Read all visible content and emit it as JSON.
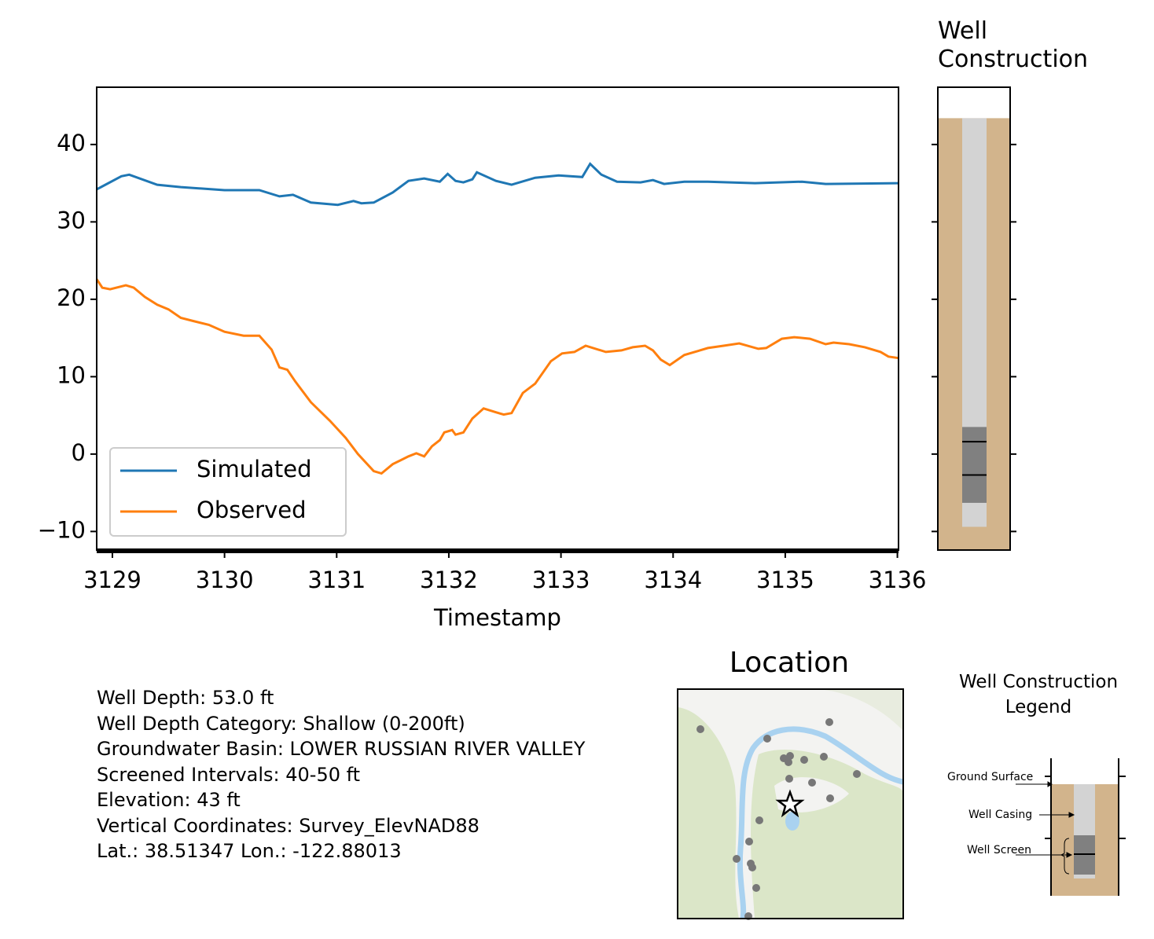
{
  "chart_data": [
    {
      "type": "line",
      "xlabel": "Timestamp",
      "xlim": [
        3128.86,
        3136.01
      ],
      "ylim": [
        -12.4,
        47.4
      ],
      "xticks": [
        3129,
        3130,
        3131,
        3132,
        3133,
        3134,
        3135,
        3136
      ],
      "yticks": [
        {
          "value": -10,
          "label": "−10"
        },
        0,
        10,
        20,
        30,
        40
      ],
      "legend": "lower left",
      "series": [
        {
          "name": "Simulated",
          "color": "#1f77b4",
          "x": [
            3128.86,
            3129.08,
            3129.15,
            3129.4,
            3129.61,
            3130.0,
            3130.31,
            3130.49,
            3130.61,
            3130.77,
            3131.01,
            3131.15,
            3131.22,
            3131.33,
            3131.5,
            3131.64,
            3131.78,
            3131.92,
            3131.99,
            3132.06,
            3132.13,
            3132.21,
            3132.25,
            3132.42,
            3132.56,
            3132.77,
            3132.98,
            3133.19,
            3133.26,
            3133.36,
            3133.5,
            3133.71,
            3133.82,
            3133.92,
            3134.1,
            3134.31,
            3134.73,
            3135.15,
            3135.36,
            3136.01
          ],
          "values": [
            34.2,
            35.9,
            36.1,
            34.8,
            34.5,
            34.1,
            34.1,
            33.3,
            33.5,
            32.5,
            32.2,
            32.7,
            32.4,
            32.5,
            33.8,
            35.3,
            35.6,
            35.2,
            36.2,
            35.3,
            35.1,
            35.5,
            36.4,
            35.3,
            34.8,
            35.7,
            36.0,
            35.8,
            37.5,
            36.1,
            35.2,
            35.1,
            35.4,
            34.9,
            35.2,
            35.2,
            35.0,
            35.2,
            34.9,
            35.0
          ]
        },
        {
          "name": "Observed",
          "color": "#ff7f0e",
          "x": [
            3128.86,
            3128.91,
            3128.98,
            3129.12,
            3129.19,
            3129.29,
            3129.4,
            3129.5,
            3129.61,
            3129.72,
            3129.86,
            3130.0,
            3130.17,
            3130.31,
            3130.42,
            3130.49,
            3130.56,
            3130.63,
            3130.77,
            3130.94,
            3131.08,
            3131.19,
            3131.33,
            3131.4,
            3131.5,
            3131.64,
            3131.71,
            3131.78,
            3131.85,
            3131.92,
            3131.96,
            3132.03,
            3132.06,
            3132.13,
            3132.21,
            3132.31,
            3132.42,
            3132.49,
            3132.56,
            3132.66,
            3132.77,
            3132.91,
            3133.01,
            3133.12,
            3133.22,
            3133.4,
            3133.54,
            3133.64,
            3133.75,
            3133.82,
            3133.89,
            3133.97,
            3134.1,
            3134.31,
            3134.45,
            3134.59,
            3134.76,
            3134.83,
            3134.97,
            3135.08,
            3135.22,
            3135.36,
            3135.43,
            3135.57,
            3135.71,
            3135.85,
            3135.92,
            3136.01
          ],
          "values": [
            22.6,
            21.5,
            21.3,
            21.8,
            21.5,
            20.3,
            19.3,
            18.7,
            17.6,
            17.2,
            16.7,
            15.8,
            15.3,
            15.3,
            13.5,
            11.2,
            10.9,
            9.4,
            6.7,
            4.3,
            2.1,
            0.0,
            -2.2,
            -2.5,
            -1.3,
            -0.3,
            0.1,
            -0.3,
            1.0,
            1.8,
            2.8,
            3.1,
            2.5,
            2.8,
            4.6,
            5.9,
            5.4,
            5.1,
            5.3,
            7.9,
            9.1,
            12.0,
            13.0,
            13.2,
            14.0,
            13.2,
            13.4,
            13.8,
            14.0,
            13.4,
            12.2,
            11.5,
            12.8,
            13.7,
            14.0,
            14.3,
            13.6,
            13.7,
            14.9,
            15.1,
            14.9,
            14.2,
            14.4,
            14.2,
            13.8,
            13.2,
            12.6,
            12.4
          ]
        }
      ]
    },
    {
      "type": "well",
      "title": "Well Construction",
      "ylim": [
        -12.4,
        47.4
      ],
      "yticks": [
        -10,
        0,
        10,
        20,
        30,
        40
      ],
      "ground": 43.4,
      "casing_bottom": -9.4,
      "screen": [
        3.5,
        -6.3
      ],
      "screen_lines": [
        1.6,
        -2.7
      ],
      "colors": {
        "soil": "#d2b48c",
        "casing": "#d3d3d3",
        "screen": "#808080"
      }
    }
  ],
  "info": [
    "Well Depth: 53.0 ft",
    "Well Depth Category: Shallow (0-200ft)",
    "Groundwater Basin: LOWER RUSSIAN RIVER VALLEY",
    "Screened Intervals: 40-50 ft",
    "Elevation: 43 ft",
    "Vertical Coordinates: Survey_ElevNAD88",
    "Lat.: 38.51347 Lon.: -122.88013"
  ],
  "location": {
    "title": "Location"
  },
  "well_legend": {
    "title": "Well Construction Legend",
    "labels": [
      "Ground Surface",
      "Well Casing",
      "Well Screen"
    ]
  }
}
